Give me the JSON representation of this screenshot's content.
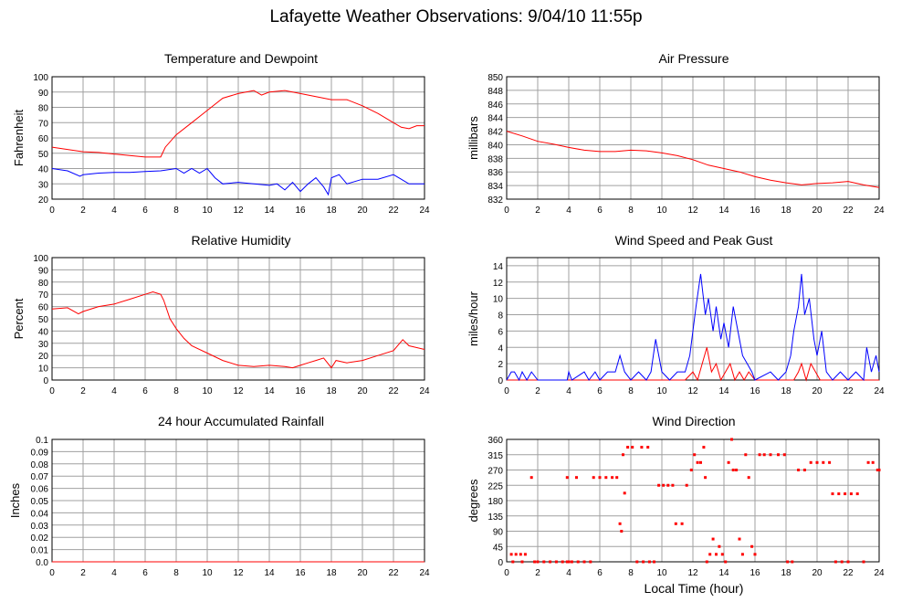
{
  "page_title": "Lafayette Weather Observations: 9/04/10 11:55p",
  "x_axis_label": "Local Time (hour)",
  "colors": {
    "red": "#ff0000",
    "blue": "#0000ff",
    "grid": "#a0a0a0"
  },
  "chart_data": [
    {
      "id": "temp",
      "type": "line",
      "title": "Temperature and Dewpoint",
      "xlabel": "",
      "ylabel": "Fahrenheit",
      "xlim": [
        0,
        24
      ],
      "ylim": [
        20,
        100
      ],
      "xticks": [
        0,
        2,
        4,
        6,
        8,
        10,
        12,
        14,
        16,
        18,
        20,
        22,
        24
      ],
      "yticks": [
        20,
        30,
        40,
        50,
        60,
        70,
        80,
        90,
        100
      ],
      "grid": true,
      "series": [
        {
          "color": "#ff0000",
          "x": [
            0,
            1,
            2,
            3,
            4,
            5,
            6,
            7,
            7.3,
            8,
            9,
            10,
            11,
            12,
            13,
            13.5,
            14,
            15,
            16,
            17,
            18,
            19,
            20,
            21,
            22,
            22.5,
            23,
            23.5,
            24
          ],
          "y": [
            54,
            52.5,
            51,
            50.5,
            49.5,
            48.5,
            47.5,
            47.5,
            54,
            62,
            70,
            78,
            86,
            89,
            91,
            88,
            90,
            91,
            89,
            87,
            85,
            85,
            81,
            76,
            70,
            67,
            66,
            68,
            68
          ]
        },
        {
          "color": "#0000ff",
          "x": [
            0,
            1,
            1.8,
            2,
            3,
            4,
            5,
            6,
            7,
            8,
            8.5,
            9,
            9.5,
            10,
            10.5,
            11,
            12,
            13,
            14,
            14.5,
            15,
            15.5,
            16,
            16.5,
            17,
            17.5,
            17.8,
            18,
            18.5,
            19,
            20,
            21,
            22,
            22.5,
            23,
            24
          ],
          "y": [
            40,
            38.5,
            35,
            36,
            37,
            37.5,
            37.5,
            38,
            38.5,
            40,
            37,
            40,
            37,
            40,
            34,
            30,
            31,
            30,
            29,
            30,
            26,
            31,
            25,
            30,
            34,
            28,
            23,
            34,
            36,
            30,
            33,
            33,
            36,
            33,
            30,
            30
          ]
        }
      ]
    },
    {
      "id": "pressure",
      "type": "line",
      "title": "Air Pressure",
      "xlabel": "",
      "ylabel": "millibars",
      "xlim": [
        0,
        24
      ],
      "ylim": [
        832,
        850
      ],
      "xticks": [
        0,
        2,
        4,
        6,
        8,
        10,
        12,
        14,
        16,
        18,
        20,
        22,
        24
      ],
      "yticks": [
        832,
        834,
        836,
        838,
        840,
        842,
        844,
        846,
        848,
        850
      ],
      "grid": true,
      "series": [
        {
          "color": "#ff0000",
          "x": [
            0,
            1,
            2,
            3,
            4,
            5,
            6,
            7,
            8,
            9,
            10,
            11,
            12,
            13,
            14,
            15,
            16,
            17,
            18,
            19,
            20,
            21,
            22,
            23,
            24
          ],
          "y": [
            842,
            841.3,
            840.5,
            840.1,
            839.6,
            839.2,
            839,
            839,
            839.2,
            839.1,
            838.8,
            838.4,
            837.8,
            837,
            836.5,
            836,
            835.3,
            834.8,
            834.4,
            834.1,
            834.3,
            834.4,
            834.6,
            834.1,
            833.7
          ]
        }
      ]
    },
    {
      "id": "humidity",
      "type": "line",
      "title": "Relative Humidity",
      "xlabel": "",
      "ylabel": "Percent",
      "xlim": [
        0,
        24
      ],
      "ylim": [
        0,
        100
      ],
      "xticks": [
        0,
        2,
        4,
        6,
        8,
        10,
        12,
        14,
        16,
        18,
        20,
        22,
        24
      ],
      "yticks": [
        0,
        10,
        20,
        30,
        40,
        50,
        60,
        70,
        80,
        90,
        100
      ],
      "grid": true,
      "series": [
        {
          "color": "#ff0000",
          "x": [
            0,
            1,
            1.7,
            2,
            3,
            4,
            5,
            6,
            6.5,
            7,
            7.2,
            7.6,
            8,
            8.5,
            9,
            10,
            11,
            12,
            13,
            14,
            15,
            15.5,
            16,
            16.5,
            17,
            17.5,
            18,
            18.3,
            19,
            20,
            21,
            22,
            22.6,
            23,
            24
          ],
          "y": [
            58,
            59,
            54,
            56,
            60,
            62,
            66,
            70,
            72,
            70,
            65,
            50,
            42,
            34,
            28,
            22,
            16,
            12,
            11,
            12,
            11,
            10,
            12,
            14,
            16,
            18,
            10,
            16,
            14,
            16,
            20,
            24,
            33,
            28,
            25
          ]
        }
      ]
    },
    {
      "id": "wind_speed",
      "type": "line",
      "title": "Wind Speed and Peak Gust",
      "xlabel": "",
      "ylabel": "miles/hour",
      "xlim": [
        0,
        24
      ],
      "ylim": [
        0,
        15
      ],
      "xticks": [
        0,
        2,
        4,
        6,
        8,
        10,
        12,
        14,
        16,
        18,
        20,
        22,
        24
      ],
      "yticks": [
        0,
        2,
        4,
        6,
        8,
        10,
        12,
        14
      ],
      "grid": true,
      "series": [
        {
          "color": "#ff0000",
          "x": [
            0,
            11.5,
            12,
            12.3,
            12.6,
            12.9,
            13.2,
            13.5,
            13.8,
            14.1,
            14.4,
            14.7,
            15,
            15.3,
            15.6,
            16,
            18.5,
            18.8,
            19,
            19.3,
            19.6,
            19.9,
            20.2,
            24
          ],
          "y": [
            0,
            0,
            1,
            0,
            2,
            4,
            1,
            2,
            0,
            1,
            2,
            0,
            1,
            0,
            1,
            0,
            0,
            1,
            2,
            0,
            2,
            1,
            0,
            0
          ]
        },
        {
          "color": "#0000ff",
          "x": [
            0,
            0.3,
            0.5,
            0.8,
            1,
            1.3,
            1.6,
            2,
            3.9,
            4,
            4.2,
            5,
            5.3,
            5.7,
            6,
            6.5,
            7,
            7.3,
            7.6,
            8,
            8.5,
            9,
            9.3,
            9.6,
            10,
            10.5,
            11,
            11.5,
            11.8,
            12,
            12.2,
            12.5,
            12.8,
            13,
            13.3,
            13.5,
            13.8,
            14,
            14.3,
            14.6,
            14.9,
            15.2,
            15.5,
            15.8,
            16,
            17,
            17.5,
            18,
            18.3,
            18.5,
            18.8,
            19,
            19.2,
            19.5,
            19.8,
            20,
            20.3,
            20.6,
            21,
            21.5,
            22,
            22.5,
            23,
            23.2,
            23.5,
            23.8,
            24
          ],
          "y": [
            0,
            1,
            1,
            0,
            1,
            0,
            1,
            0,
            0,
            1,
            0,
            1,
            0,
            1,
            0,
            1,
            1,
            3,
            1,
            0,
            1,
            0,
            1,
            5,
            1,
            0,
            1,
            1,
            3,
            6,
            9,
            13,
            8,
            10,
            6,
            9,
            5,
            7,
            4,
            9,
            6,
            3,
            2,
            1,
            0,
            1,
            0,
            1,
            3,
            6,
            9,
            13,
            8,
            10,
            5,
            3,
            6,
            1,
            0,
            1,
            0,
            1,
            0,
            4,
            1,
            3,
            1
          ]
        }
      ]
    },
    {
      "id": "rain",
      "type": "line",
      "title": "24 hour Accumulated Rainfall",
      "xlabel": "",
      "ylabel": "Inches",
      "xlim": [
        0,
        24
      ],
      "ylim": [
        0,
        0.1
      ],
      "xticks": [
        0,
        2,
        4,
        6,
        8,
        10,
        12,
        14,
        16,
        18,
        20,
        22,
        24
      ],
      "yticks": [
        "0.0",
        "0.01",
        "0.02",
        "0.03",
        "0.04",
        "0.05",
        "0.06",
        "0.07",
        "0.08",
        "0.09",
        "0.1"
      ],
      "grid": true,
      "series": [
        {
          "color": "#ff0000",
          "x": [
            0,
            24
          ],
          "y": [
            0,
            0
          ]
        }
      ]
    },
    {
      "id": "wind_dir",
      "type": "scatter",
      "title": "Wind Direction",
      "xlabel": "Local Time (hour)",
      "ylabel": "degrees",
      "xlim": [
        0,
        24
      ],
      "ylim": [
        0,
        360
      ],
      "xticks": [
        0,
        2,
        4,
        6,
        8,
        10,
        12,
        14,
        16,
        18,
        20,
        22,
        24
      ],
      "yticks": [
        0,
        45,
        90,
        135,
        180,
        225,
        270,
        315,
        360
      ],
      "grid": true,
      "series": [
        {
          "color": "#ff0000",
          "points": [
            [
              0.3,
              22
            ],
            [
              0.6,
              22
            ],
            [
              0.9,
              22
            ],
            [
              1.2,
              22
            ],
            [
              1.6,
              248
            ],
            [
              0.4,
              0
            ],
            [
              1,
              0
            ],
            [
              1.8,
              0
            ],
            [
              2,
              0
            ],
            [
              2.4,
              0
            ],
            [
              2.8,
              0
            ],
            [
              3.2,
              0
            ],
            [
              3.6,
              0
            ],
            [
              3.9,
              0
            ],
            [
              4,
              0
            ],
            [
              4.2,
              0
            ],
            [
              4.6,
              0
            ],
            [
              5,
              0
            ],
            [
              5.4,
              0
            ],
            [
              3.9,
              248
            ],
            [
              4.5,
              248
            ],
            [
              5.6,
              248
            ],
            [
              6,
              248
            ],
            [
              6.4,
              248
            ],
            [
              6.8,
              248
            ],
            [
              7.1,
              248
            ],
            [
              7.3,
              112
            ],
            [
              7.4,
              90
            ],
            [
              7.5,
              315
            ],
            [
              7.6,
              202
            ],
            [
              7.8,
              337
            ],
            [
              8.1,
              337
            ],
            [
              8.4,
              0
            ],
            [
              8.8,
              0
            ],
            [
              9.2,
              0
            ],
            [
              8.7,
              337
            ],
            [
              9.1,
              337
            ],
            [
              9.5,
              0
            ],
            [
              9.8,
              225
            ],
            [
              10.1,
              225
            ],
            [
              10.4,
              225
            ],
            [
              10.7,
              225
            ],
            [
              10.9,
              112
            ],
            [
              11.3,
              112
            ],
            [
              11.6,
              225
            ],
            [
              11.9,
              270
            ],
            [
              12.1,
              315
            ],
            [
              12.3,
              292
            ],
            [
              12.5,
              292
            ],
            [
              12.7,
              337
            ],
            [
              12.8,
              248
            ],
            [
              12.9,
              0
            ],
            [
              13.1,
              22
            ],
            [
              13.3,
              67
            ],
            [
              13.5,
              22
            ],
            [
              13.7,
              45
            ],
            [
              13.9,
              22
            ],
            [
              14.1,
              0
            ],
            [
              14.3,
              292
            ],
            [
              14.5,
              360
            ],
            [
              14.6,
              270
            ],
            [
              14.8,
              270
            ],
            [
              15,
              67
            ],
            [
              15.2,
              22
            ],
            [
              15.4,
              315
            ],
            [
              15.6,
              248
            ],
            [
              15.8,
              45
            ],
            [
              16,
              22
            ],
            [
              16.3,
              315
            ],
            [
              16.6,
              315
            ],
            [
              17,
              315
            ],
            [
              17.5,
              315
            ],
            [
              17.9,
              315
            ],
            [
              18.1,
              0
            ],
            [
              18.4,
              0
            ],
            [
              18.8,
              270
            ],
            [
              19.2,
              270
            ],
            [
              19.6,
              292
            ],
            [
              20,
              292
            ],
            [
              20.4,
              292
            ],
            [
              20.8,
              292
            ],
            [
              21,
              200
            ],
            [
              21.4,
              200
            ],
            [
              21.8,
              200
            ],
            [
              22.2,
              200
            ],
            [
              22.6,
              200
            ],
            [
              21.2,
              0
            ],
            [
              21.6,
              0
            ],
            [
              22,
              0
            ],
            [
              23,
              0
            ],
            [
              23.3,
              292
            ],
            [
              23.6,
              292
            ],
            [
              23.9,
              270
            ],
            [
              24,
              270
            ]
          ]
        }
      ]
    }
  ]
}
